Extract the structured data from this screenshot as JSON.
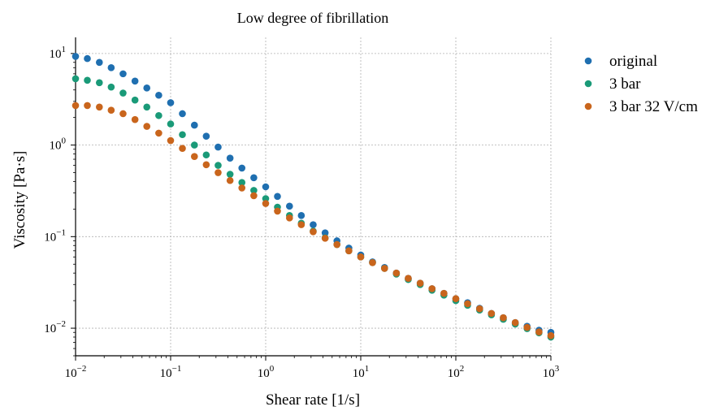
{
  "chart_data": {
    "type": "scatter",
    "title": "Low degree of fibrillation",
    "xlabel": "Shear rate [1/s]",
    "ylabel": "Viscosity [Pa·s]",
    "xscale": "log",
    "yscale": "log",
    "xlim": [
      0.01,
      1000
    ],
    "ylim": [
      0.005,
      15
    ],
    "grid": true,
    "legend_position": "outside-right",
    "x_ticks": [
      {
        "value": 0.01,
        "base": "10",
        "exp": "−2"
      },
      {
        "value": 0.1,
        "base": "10",
        "exp": "−1"
      },
      {
        "value": 1,
        "base": "10",
        "exp": "0"
      },
      {
        "value": 10,
        "base": "10",
        "exp": "1"
      },
      {
        "value": 100,
        "base": "10",
        "exp": "2"
      },
      {
        "value": 1000,
        "base": "10",
        "exp": "3"
      }
    ],
    "y_ticks": [
      {
        "value": 0.01,
        "base": "10",
        "exp": "−2"
      },
      {
        "value": 0.1,
        "base": "10",
        "exp": "−1"
      },
      {
        "value": 1,
        "base": "10",
        "exp": "0"
      },
      {
        "value": 10,
        "base": "10",
        "exp": "1"
      }
    ],
    "x": [
      0.01,
      0.0133,
      0.0178,
      0.0237,
      0.0316,
      0.0422,
      0.0562,
      0.075,
      0.1,
      0.133,
      0.178,
      0.237,
      0.316,
      0.422,
      0.562,
      0.75,
      1.0,
      1.33,
      1.78,
      2.37,
      3.16,
      4.22,
      5.62,
      7.5,
      10,
      13.3,
      17.8,
      23.7,
      31.6,
      42.2,
      56.2,
      75,
      100,
      133,
      178,
      237,
      316,
      422,
      562,
      750,
      1000
    ],
    "series": [
      {
        "name": "original",
        "color": "#1f6fb0",
        "values": [
          9.3,
          8.8,
          8.0,
          7.0,
          6.0,
          5.0,
          4.2,
          3.5,
          2.9,
          2.2,
          1.65,
          1.25,
          0.95,
          0.72,
          0.56,
          0.44,
          0.35,
          0.275,
          0.215,
          0.17,
          0.135,
          0.11,
          0.09,
          0.075,
          0.063,
          0.053,
          0.046,
          0.04,
          0.035,
          0.031,
          0.027,
          0.024,
          0.021,
          0.019,
          0.0165,
          0.0145,
          0.013,
          0.0115,
          0.0105,
          0.0095,
          0.009
        ]
      },
      {
        "name": "3 bar",
        "color": "#1a9a78",
        "values": [
          5.3,
          5.1,
          4.8,
          4.3,
          3.7,
          3.1,
          2.6,
          2.1,
          1.7,
          1.3,
          1.0,
          0.78,
          0.6,
          0.48,
          0.39,
          0.32,
          0.26,
          0.21,
          0.17,
          0.14,
          0.115,
          0.097,
          0.082,
          0.07,
          0.06,
          0.052,
          0.045,
          0.039,
          0.034,
          0.03,
          0.026,
          0.023,
          0.02,
          0.0178,
          0.0158,
          0.014,
          0.0125,
          0.0111,
          0.0099,
          0.0089,
          0.008
        ]
      },
      {
        "name": "3 bar 32 V/cm",
        "color": "#c9651c",
        "values": [
          2.7,
          2.7,
          2.6,
          2.4,
          2.2,
          1.9,
          1.6,
          1.35,
          1.12,
          0.92,
          0.75,
          0.61,
          0.5,
          0.41,
          0.34,
          0.28,
          0.23,
          0.19,
          0.16,
          0.135,
          0.113,
          0.096,
          0.082,
          0.07,
          0.06,
          0.052,
          0.045,
          0.04,
          0.035,
          0.031,
          0.027,
          0.024,
          0.021,
          0.0185,
          0.0163,
          0.0145,
          0.013,
          0.0115,
          0.0102,
          0.0091,
          0.0083
        ]
      }
    ]
  }
}
